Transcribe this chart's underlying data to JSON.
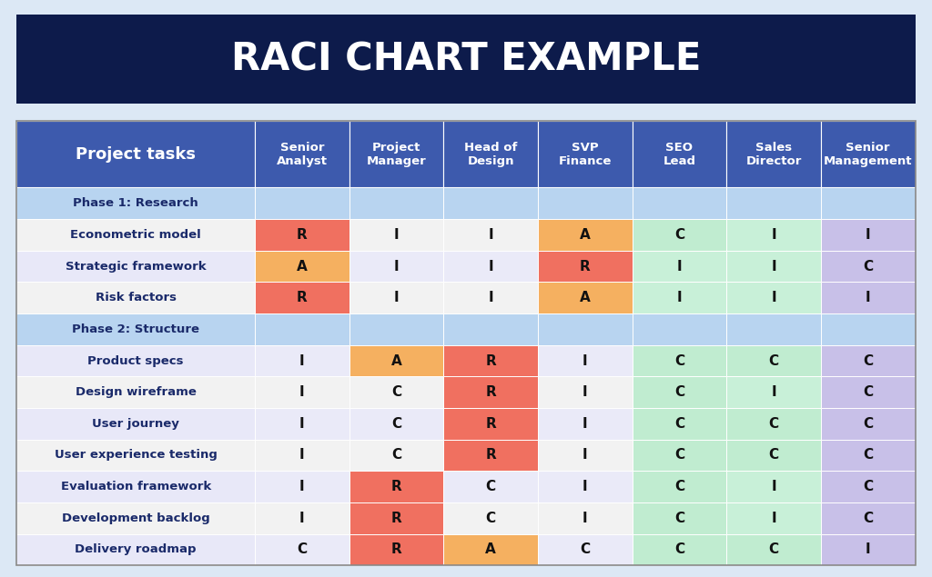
{
  "title": "RACI CHART EXAMPLE",
  "title_bg": "#0d1b4b",
  "title_color": "#ffffff",
  "header_bg": "#3d5aad",
  "header_color": "#ffffff",
  "col_headers": [
    "Senior\nAnalyst",
    "Project\nManager",
    "Head of\nDesign",
    "SVP\nFinance",
    "SEO\nLead",
    "Sales\nDirector",
    "Senior\nManagement"
  ],
  "rows": [
    {
      "label": "Phase 1: Research",
      "phase": true,
      "cells": [
        "",
        "",
        "",
        "",
        "",
        "",
        ""
      ]
    },
    {
      "label": "Econometric model",
      "phase": false,
      "cells": [
        "R",
        "I",
        "I",
        "A",
        "C",
        "I",
        "I"
      ]
    },
    {
      "label": "Strategic framework",
      "phase": false,
      "cells": [
        "A",
        "I",
        "I",
        "R",
        "I",
        "I",
        "C"
      ]
    },
    {
      "label": "Risk factors",
      "phase": false,
      "cells": [
        "R",
        "I",
        "I",
        "A",
        "I",
        "I",
        "I"
      ]
    },
    {
      "label": "Phase 2: Structure",
      "phase": true,
      "cells": [
        "",
        "",
        "",
        "",
        "",
        "",
        ""
      ]
    },
    {
      "label": "Product specs",
      "phase": false,
      "cells": [
        "I",
        "A",
        "R",
        "I",
        "C",
        "C",
        "C"
      ]
    },
    {
      "label": "Design wireframe",
      "phase": false,
      "cells": [
        "I",
        "C",
        "R",
        "I",
        "C",
        "I",
        "C"
      ]
    },
    {
      "label": "User journey",
      "phase": false,
      "cells": [
        "I",
        "C",
        "R",
        "I",
        "C",
        "C",
        "C"
      ]
    },
    {
      "label": "User experience testing",
      "phase": false,
      "cells": [
        "I",
        "C",
        "R",
        "I",
        "C",
        "C",
        "C"
      ]
    },
    {
      "label": "Evaluation framework",
      "phase": false,
      "cells": [
        "I",
        "R",
        "C",
        "I",
        "C",
        "I",
        "C"
      ]
    },
    {
      "label": "Development backlog",
      "phase": false,
      "cells": [
        "I",
        "R",
        "C",
        "I",
        "C",
        "I",
        "C"
      ]
    },
    {
      "label": "Delivery roadmap",
      "phase": false,
      "cells": [
        "C",
        "R",
        "A",
        "C",
        "C",
        "C",
        "I"
      ]
    }
  ],
  "cell_colors": {
    "R": "#f07060",
    "A": "#f5b060",
    "C_green": "#c0ecd0",
    "I_green": "#c8f0d8",
    "C_purple": "#c8c0e8",
    "I_purple": "#c8c0e8",
    "phase_bg": "#b8d4f0",
    "phase_cell_bg": "#b8d4f0",
    "row_odd_label": "#f2f2f2",
    "row_even_label": "#e8e8f8",
    "row_odd_cell": "#f2f2f2",
    "row_even_cell": "#eaeaf8"
  },
  "col_color_scheme": [
    "neutral",
    "neutral",
    "neutral",
    "neutral",
    "green",
    "green",
    "purple"
  ],
  "bg_color": "#dce8f5",
  "fig_width": 10.24,
  "fig_height": 6.35
}
